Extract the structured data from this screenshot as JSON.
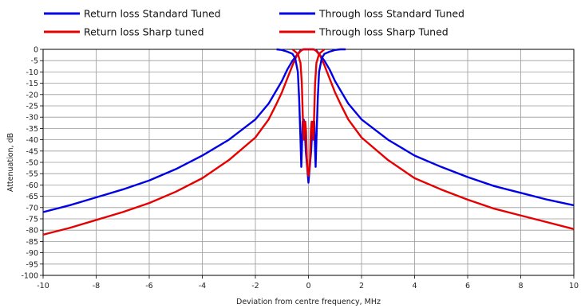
{
  "chart_data": {
    "type": "line",
    "xlabel": "Deviation from centre frequency, MHz",
    "ylabel": "Attenuation, dB",
    "xlim": [
      -10,
      10
    ],
    "ylim": [
      -100,
      0
    ],
    "x_ticks": [
      -10,
      -8,
      -6,
      -4,
      -2,
      0,
      2,
      4,
      6,
      8,
      10
    ],
    "y_ticks": [
      0,
      -5,
      -10,
      -15,
      -20,
      -25,
      -30,
      -35,
      -40,
      -45,
      -50,
      -55,
      -60,
      -65,
      -70,
      -75,
      -80,
      -85,
      -90,
      -95,
      -100
    ],
    "grid": true,
    "legend_position": "top",
    "series": [
      {
        "name": "Return loss Standard Tuned",
        "color": "#0000e6",
        "points": [
          [
            -1.2,
            0
          ],
          [
            -1.0,
            -0.3
          ],
          [
            -0.8,
            -1
          ],
          [
            -0.6,
            -2
          ],
          [
            -0.5,
            -4
          ],
          [
            -0.4,
            -10
          ],
          [
            -0.35,
            -22
          ],
          [
            -0.3,
            -40
          ],
          [
            -0.27,
            -52
          ],
          [
            -0.25,
            -45
          ],
          [
            -0.22,
            -32
          ],
          [
            -0.18,
            -31
          ],
          [
            -0.14,
            -35
          ],
          [
            -0.1,
            -45
          ],
          [
            -0.05,
            -52
          ],
          [
            0,
            -59
          ],
          [
            0.05,
            -52
          ],
          [
            0.1,
            -45
          ],
          [
            0.14,
            -36
          ],
          [
            0.18,
            -32
          ],
          [
            0.22,
            -32
          ],
          [
            0.25,
            -45
          ],
          [
            0.27,
            -52
          ],
          [
            0.3,
            -40
          ],
          [
            0.35,
            -22
          ],
          [
            0.4,
            -10
          ],
          [
            0.5,
            -4
          ],
          [
            0.6,
            -2
          ],
          [
            0.8,
            -1
          ],
          [
            1.0,
            -0.3
          ],
          [
            1.2,
            0
          ],
          [
            1.4,
            0
          ]
        ]
      },
      {
        "name": "Return loss Sharp tuned",
        "color": "#e60000",
        "points": [
          [
            -0.6,
            0
          ],
          [
            -0.4,
            -2
          ],
          [
            -0.3,
            -6
          ],
          [
            -0.25,
            -15
          ],
          [
            -0.2,
            -35
          ],
          [
            -0.18,
            -40
          ],
          [
            -0.15,
            -33
          ],
          [
            -0.12,
            -32
          ],
          [
            -0.09,
            -36
          ],
          [
            -0.06,
            -48
          ],
          [
            -0.03,
            -54
          ],
          [
            0,
            -56
          ],
          [
            0.03,
            -54
          ],
          [
            0.06,
            -48
          ],
          [
            0.09,
            -36
          ],
          [
            0.12,
            -32
          ],
          [
            0.15,
            -33
          ],
          [
            0.18,
            -40
          ],
          [
            0.2,
            -35
          ],
          [
            0.25,
            -15
          ],
          [
            0.3,
            -6
          ],
          [
            0.4,
            -2
          ],
          [
            0.6,
            0
          ]
        ]
      },
      {
        "name": "Through loss Standard Tuned",
        "color": "#0000e6",
        "points": [
          [
            -10,
            -72
          ],
          [
            -9,
            -69
          ],
          [
            -8,
            -65.5
          ],
          [
            -7,
            -62
          ],
          [
            -6,
            -58
          ],
          [
            -5,
            -53
          ],
          [
            -4,
            -47
          ],
          [
            -3,
            -40
          ],
          [
            -2,
            -31
          ],
          [
            -1.5,
            -24
          ],
          [
            -1.2,
            -18
          ],
          [
            -1,
            -14
          ],
          [
            -0.8,
            -9
          ],
          [
            -0.6,
            -5
          ],
          [
            -0.4,
            -2
          ],
          [
            -0.3,
            -0.5
          ],
          [
            -0.2,
            0
          ],
          [
            0.2,
            0
          ],
          [
            0.3,
            -0.5
          ],
          [
            0.4,
            -2
          ],
          [
            0.6,
            -5
          ],
          [
            0.8,
            -9
          ],
          [
            1,
            -14
          ],
          [
            1.2,
            -18
          ],
          [
            1.5,
            -24
          ],
          [
            2,
            -31
          ],
          [
            3,
            -40
          ],
          [
            4,
            -47
          ],
          [
            5,
            -52
          ],
          [
            6,
            -56.5
          ],
          [
            7,
            -60.5
          ],
          [
            8,
            -63.5
          ],
          [
            9,
            -66.5
          ],
          [
            10,
            -69
          ]
        ]
      },
      {
        "name": "Through loss Sharp Tuned",
        "color": "#e60000",
        "points": [
          [
            -10,
            -82
          ],
          [
            -9,
            -79
          ],
          [
            -8,
            -75.5
          ],
          [
            -7,
            -72
          ],
          [
            -6,
            -68
          ],
          [
            -5,
            -63
          ],
          [
            -4,
            -57
          ],
          [
            -3,
            -49
          ],
          [
            -2,
            -39
          ],
          [
            -1.5,
            -31
          ],
          [
            -1.2,
            -24
          ],
          [
            -1,
            -19
          ],
          [
            -0.8,
            -13
          ],
          [
            -0.6,
            -7
          ],
          [
            -0.45,
            -3
          ],
          [
            -0.3,
            -0.8
          ],
          [
            -0.2,
            0
          ],
          [
            0.2,
            0
          ],
          [
            0.3,
            -0.8
          ],
          [
            0.45,
            -3
          ],
          [
            0.6,
            -7
          ],
          [
            0.8,
            -13
          ],
          [
            1,
            -19
          ],
          [
            1.2,
            -24
          ],
          [
            1.5,
            -31
          ],
          [
            2,
            -39
          ],
          [
            3,
            -49
          ],
          [
            4,
            -57
          ],
          [
            5,
            -62
          ],
          [
            6,
            -66.5
          ],
          [
            7,
            -70.5
          ],
          [
            8,
            -73.5
          ],
          [
            9,
            -76.5
          ],
          [
            10,
            -79.5
          ]
        ]
      }
    ]
  }
}
